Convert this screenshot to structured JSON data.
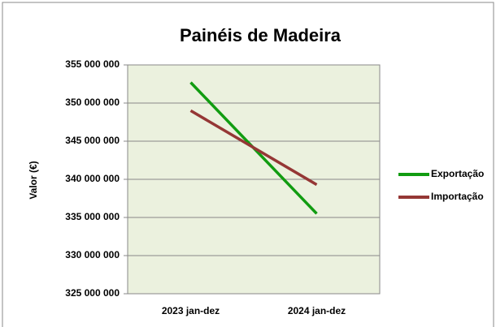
{
  "chart_data": {
    "type": "line",
    "title": "Painéis de Madeira",
    "y_label": "Valor (€)",
    "categories": [
      "2023 jan-dez",
      "2024 jan-dez"
    ],
    "series": [
      {
        "name": "Exportação",
        "color": "#119c11",
        "values": [
          352700000,
          335500000
        ]
      },
      {
        "name": "Importação",
        "color": "#953735",
        "values": [
          349000000,
          339300000
        ]
      }
    ],
    "ylim": [
      325000000,
      355000000
    ],
    "yticks": [
      {
        "value": 325000000,
        "label": "325 000 000"
      },
      {
        "value": 330000000,
        "label": "330 000 000"
      },
      {
        "value": 335000000,
        "label": "335 000 000"
      },
      {
        "value": 340000000,
        "label": "340 000 000"
      },
      {
        "value": 345000000,
        "label": "345 000 000"
      },
      {
        "value": 350000000,
        "label": "350 000 000"
      },
      {
        "value": 355000000,
        "label": "355 000 000"
      }
    ],
    "grid": true,
    "legend": "right"
  }
}
